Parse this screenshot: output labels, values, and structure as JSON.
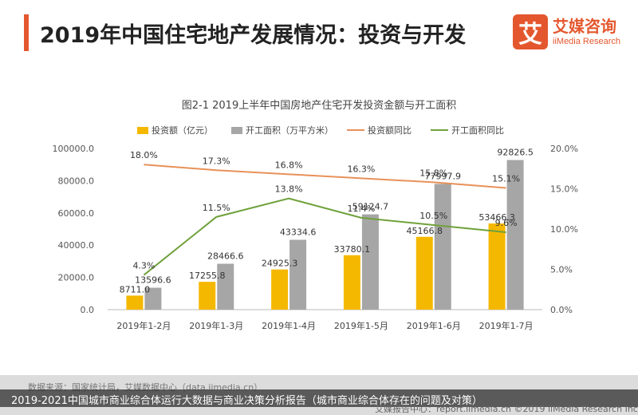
{
  "header": {
    "title": "2019年中国住宅地产发展情况：投资与开发",
    "brand_logo_char": "艾",
    "brand_cn": "艾媒咨询",
    "brand_en": "iiMedia Research",
    "accent_color": "#e4572e"
  },
  "chart_data": {
    "type": "bar",
    "title": "图2-1 2019上半年中国房地产住宅开发投资金额与开工面积",
    "categories": [
      "2019年1-2月",
      "2019年1-3月",
      "2019年1-4月",
      "2019年1-5月",
      "2019年1-6月",
      "2019年1-7月"
    ],
    "y_left_ticks": [
      "0.0",
      "20000.0",
      "40000.0",
      "60000.0",
      "80000.0",
      "100000.0"
    ],
    "y_left_range": [
      0,
      100000
    ],
    "y_right_ticks": [
      "0.0%",
      "5.0%",
      "10.0%",
      "15.0%",
      "20.0%"
    ],
    "y_right_range": [
      0,
      20
    ],
    "bar_series": [
      {
        "name": "投资额（亿元）",
        "color": "#f5b800",
        "values": [
          8711.0,
          17255.8,
          24925.3,
          33780.1,
          45166.8,
          53466.3
        ],
        "labels": [
          "8711.0",
          "17255.8",
          "24925.3",
          "33780.1",
          "45166.8",
          "53466.3"
        ]
      },
      {
        "name": "开工面积（万平方米）",
        "color": "#a6a6a6",
        "values": [
          13596.6,
          28466.6,
          43334.6,
          59124.7,
          77997.9,
          92826.5
        ],
        "labels": [
          "13596.6",
          "28466.6",
          "43334.6",
          "59124.7",
          "77997.9",
          "92826.5"
        ]
      }
    ],
    "line_series": [
      {
        "name": "投资额同比",
        "color": "#e8915a",
        "values": [
          18.0,
          17.3,
          16.8,
          16.3,
          15.8,
          15.1
        ],
        "labels": [
          "18.0%",
          "17.3%",
          "16.8%",
          "16.3%",
          "15.8%",
          "15.1%"
        ]
      },
      {
        "name": "开工面积同比",
        "color": "#70a13c",
        "values": [
          4.3,
          11.5,
          13.8,
          11.4,
          10.5,
          9.6
        ],
        "labels": [
          "4.3%",
          "11.5%",
          "13.8%",
          "11.4%",
          "10.5%",
          "9.6%"
        ]
      }
    ],
    "legend_position": "top"
  },
  "footer": {
    "source": "数据来源：国家统计局，艾媒数据中心（data.iimedia.cn）",
    "caption": "2019-2021中国城市商业综合体运行大数据与商业决策分析报告（城市商业综合体存在的问题及对策）",
    "report": "艾媒报告中心：report.iimedia.cn  ©2019  iiMedia Research Inc"
  }
}
